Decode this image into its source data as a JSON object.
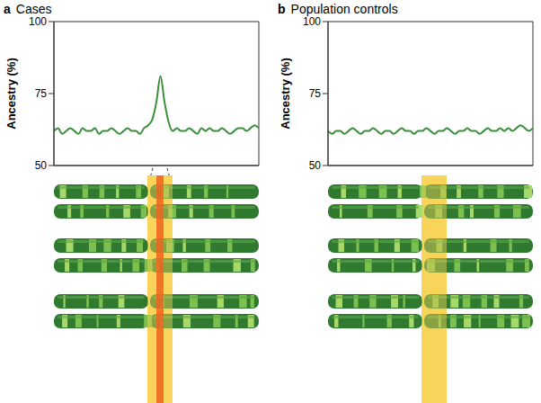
{
  "chart_data": [
    {
      "panel": "a",
      "title": "Cases",
      "type": "line",
      "ylabel": "Ancestry (%)",
      "x": [
        0,
        2,
        4,
        6,
        8,
        10,
        12,
        14,
        16,
        18,
        20,
        22,
        24,
        26,
        28,
        30,
        32,
        34,
        36,
        38,
        40,
        42,
        44,
        46,
        48,
        50,
        52,
        54,
        56,
        58,
        60,
        62,
        64,
        66,
        68,
        70,
        72,
        74,
        76,
        78,
        80,
        82,
        84,
        86,
        88,
        90,
        92,
        94,
        96,
        98,
        100
      ],
      "xlim": [
        0,
        100
      ],
      "ylim": [
        50,
        100
      ],
      "yticks": [
        50,
        75,
        100
      ],
      "tick_labels": "y",
      "color": "#3a8f3a",
      "values": [
        62,
        63,
        61,
        62,
        63,
        62,
        61,
        63,
        62,
        62,
        63,
        61,
        62,
        62,
        63,
        62,
        61,
        62,
        63,
        62,
        62,
        61,
        63,
        64,
        66,
        72,
        81,
        72,
        65,
        62,
        63,
        62,
        62,
        63,
        62,
        61,
        63,
        62,
        63,
        62,
        62,
        63,
        62,
        61,
        62,
        63,
        63,
        62,
        63,
        64,
        63
      ]
    },
    {
      "panel": "b",
      "title": "Population controls",
      "type": "line",
      "ylabel": "Ancestry (%)",
      "x": [
        0,
        2,
        4,
        6,
        8,
        10,
        12,
        14,
        16,
        18,
        20,
        22,
        24,
        26,
        28,
        30,
        32,
        34,
        36,
        38,
        40,
        42,
        44,
        46,
        48,
        50,
        52,
        54,
        56,
        58,
        60,
        62,
        64,
        66,
        68,
        70,
        72,
        74,
        76,
        78,
        80,
        82,
        84,
        86,
        88,
        90,
        92,
        94,
        96,
        98,
        100
      ],
      "xlim": [
        0,
        100
      ],
      "ylim": [
        50,
        100
      ],
      "yticks": [
        50,
        75,
        100
      ],
      "tick_labels": "y",
      "color": "#3a8f3a",
      "values": [
        62,
        61,
        62,
        62,
        61,
        62,
        63,
        62,
        61,
        62,
        62,
        63,
        62,
        61,
        62,
        62,
        61,
        62,
        63,
        62,
        62,
        61,
        62,
        62,
        63,
        62,
        61,
        62,
        62,
        63,
        62,
        61,
        62,
        62,
        63,
        62,
        62,
        61,
        62,
        63,
        62,
        62,
        63,
        62,
        63,
        62,
        63,
        64,
        63,
        62,
        63
      ]
    }
  ]
}
